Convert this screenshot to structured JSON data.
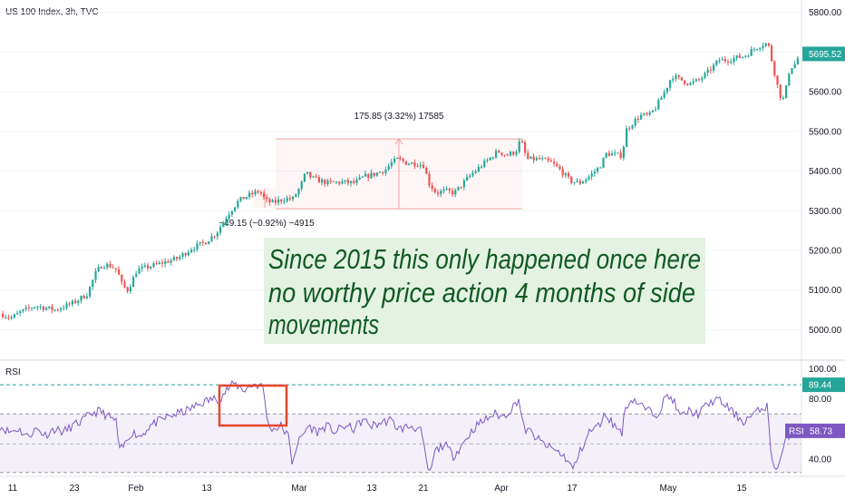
{
  "chart_data": {
    "type": "candlestick",
    "title": "US 100 Index, 3h, TVC",
    "price_axis": {
      "range": [
        4930,
        5820
      ],
      "ticks": [
        "5800.00",
        "5700.00",
        "5600.00",
        "5500.00",
        "5400.00",
        "5300.00",
        "5200.00",
        "5100.00",
        "5000.00"
      ],
      "last_price_label": "5695.52",
      "last_price": 5695.52
    },
    "measure_up": {
      "text": "175.85 (3.32%) 17585",
      "from": 5305,
      "to": 5481
    },
    "measure_down": {
      "text": "−49.15 (−0.92%) −4915",
      "from": 5356,
      "to": 5307
    },
    "annotation": {
      "lines": [
        "Since 2015 this only happened once here",
        "no worthy price action 4 months of side",
        "movements"
      ],
      "bg_color": "#e4f2e2",
      "text_color": "#0f5a22"
    },
    "rsi": {
      "label": "RSI",
      "value_label": "RSI",
      "current": "58.73",
      "current_value": 58.73,
      "level_label": "89.44",
      "level_value": 89.44,
      "axis_ticks": [
        "100.00",
        "80.00",
        "40.00"
      ],
      "range": [
        29,
        101
      ],
      "band": [
        31,
        70
      ],
      "mid": 50,
      "highlight_box": {
        "from_date": "Feb 17",
        "to_date": "Feb 28",
        "color": "#e8452c"
      }
    },
    "x_axis": [
      "11",
      "23",
      "Feb",
      "13",
      "Mar",
      "13",
      "21",
      "Apr",
      "17",
      "May",
      "15"
    ],
    "up_color": "#26a69a",
    "down_color": "#ef5350"
  }
}
